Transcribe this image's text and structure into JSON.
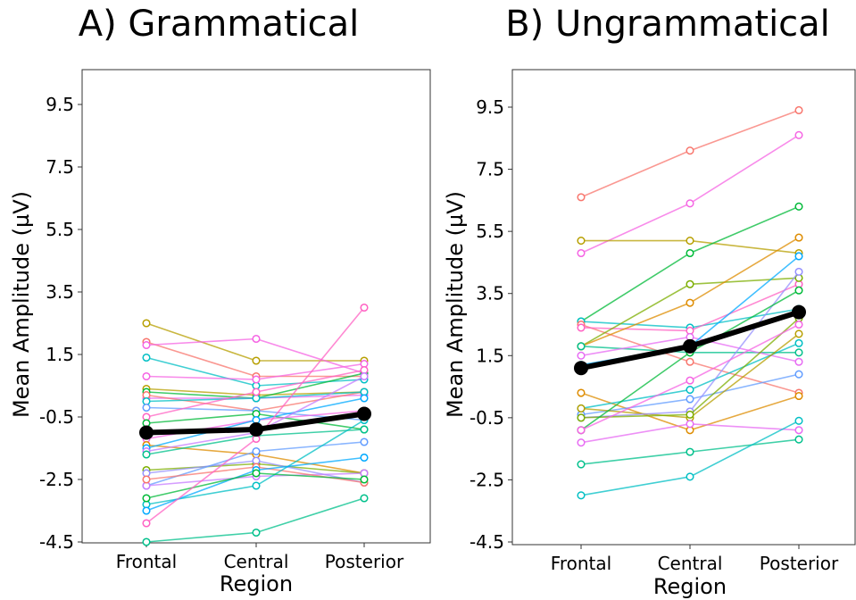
{
  "chart_data": [
    {
      "type": "line",
      "title": "A) Grammatical",
      "xlabel": "Region",
      "ylabel": "Mean Amplitude (µV)",
      "categories": [
        "Frontal",
        "Central",
        "Posterior"
      ],
      "yticks": [
        9.5,
        7.5,
        5.5,
        3.5,
        1.5,
        -0.5,
        -2.5,
        -4.5
      ],
      "ylim": [
        -5.2,
        11.0
      ],
      "grid": false,
      "mean": {
        "values": [
          -1.0,
          -0.9,
          -0.4
        ],
        "color": "#000000"
      },
      "series": [
        {
          "values": [
            2.5,
            1.3,
            1.3
          ],
          "color": "#B79F00"
        },
        {
          "values": [
            1.9,
            0.8,
            0.8
          ],
          "color": "#F8766D"
        },
        {
          "values": [
            1.8,
            2.0,
            0.9
          ],
          "color": "#F564E3"
        },
        {
          "values": [
            1.4,
            0.5,
            0.7
          ],
          "color": "#00BFC4"
        },
        {
          "values": [
            0.8,
            0.7,
            1.2
          ],
          "color": "#F564E3"
        },
        {
          "values": [
            0.4,
            0.2,
            0.3
          ],
          "color": "#B79F00"
        },
        {
          "values": [
            0.3,
            0.1,
            0.9
          ],
          "color": "#00BA38"
        },
        {
          "values": [
            0.1,
            0.1,
            0.2
          ],
          "color": "#E76BF3"
        },
        {
          "values": [
            0.2,
            -0.3,
            0.3
          ],
          "color": "#F8766D"
        },
        {
          "values": [
            0.0,
            0.1,
            0.3
          ],
          "color": "#00BFC4"
        },
        {
          "values": [
            -0.2,
            -0.3,
            -0.6
          ],
          "color": "#619CFF"
        },
        {
          "values": [
            -0.5,
            0.3,
            1.0
          ],
          "color": "#FF61C3"
        },
        {
          "values": [
            -0.7,
            -0.4,
            -0.9
          ],
          "color": "#00BA38"
        },
        {
          "values": [
            -1.2,
            -0.6,
            -0.3
          ],
          "color": "#F564E3"
        },
        {
          "values": [
            -1.4,
            -1.7,
            -2.3
          ],
          "color": "#DE8C00"
        },
        {
          "values": [
            -1.5,
            -0.6,
            0.1
          ],
          "color": "#00A9FF"
        },
        {
          "values": [
            -1.6,
            -1.0,
            0.8
          ],
          "color": "#C77CFF"
        },
        {
          "values": [
            -1.7,
            -1.1,
            -0.9
          ],
          "color": "#00C08B"
        },
        {
          "values": [
            -2.2,
            -2.0,
            -2.3
          ],
          "color": "#7CAE00"
        },
        {
          "values": [
            -2.3,
            -1.9,
            -2.6
          ],
          "color": "#9590FF"
        },
        {
          "values": [
            -2.7,
            -1.6,
            -1.3
          ],
          "color": "#619CFF"
        },
        {
          "values": [
            -2.7,
            -2.4,
            -2.3
          ],
          "color": "#C77CFF"
        },
        {
          "values": [
            -2.5,
            -2.1,
            -2.6
          ],
          "color": "#F8766D"
        },
        {
          "values": [
            -3.3,
            -2.7,
            -0.6
          ],
          "color": "#00BFC4"
        },
        {
          "values": [
            -3.5,
            -2.2,
            -1.8
          ],
          "color": "#00A9FF"
        },
        {
          "values": [
            -3.1,
            -2.3,
            -2.5
          ],
          "color": "#00BA38"
        },
        {
          "values": [
            -3.9,
            -1.2,
            3.0
          ],
          "color": "#FF61C3"
        },
        {
          "values": [
            -4.5,
            -4.2,
            -3.1
          ],
          "color": "#00C08B"
        }
      ]
    },
    {
      "type": "line",
      "title": "B) Ungrammatical",
      "xlabel": "Region",
      "ylabel": "Mean Amplitude (µV)",
      "categories": [
        "Frontal",
        "Central",
        "Posterior"
      ],
      "yticks": [
        9.5,
        7.5,
        5.5,
        3.5,
        1.5,
        -0.5,
        -2.5,
        -4.5
      ],
      "ylim": [
        -5.2,
        11.0
      ],
      "grid": false,
      "mean": {
        "values": [
          1.1,
          1.8,
          2.9
        ],
        "color": "#000000"
      },
      "series": [
        {
          "values": [
            6.6,
            8.1,
            9.4
          ],
          "color": "#F8766D"
        },
        {
          "values": [
            4.8,
            6.4,
            8.6
          ],
          "color": "#F564E3"
        },
        {
          "values": [
            5.2,
            5.2,
            4.8
          ],
          "color": "#B79F00"
        },
        {
          "values": [
            2.6,
            4.8,
            6.3
          ],
          "color": "#00BA38"
        },
        {
          "values": [
            2.6,
            2.4,
            3.0
          ],
          "color": "#00BFC4"
        },
        {
          "values": [
            2.5,
            1.3,
            0.3
          ],
          "color": "#F8766D"
        },
        {
          "values": [
            2.4,
            2.3,
            3.8
          ],
          "color": "#FF61C3"
        },
        {
          "values": [
            1.8,
            3.8,
            4.0
          ],
          "color": "#7CAE00"
        },
        {
          "values": [
            1.8,
            3.2,
            5.3
          ],
          "color": "#DE8C00"
        },
        {
          "values": [
            1.8,
            1.6,
            1.6
          ],
          "color": "#00C08B"
        },
        {
          "values": [
            1.5,
            2.1,
            1.3
          ],
          "color": "#E76BF3"
        },
        {
          "values": [
            1.2,
            1.8,
            4.7
          ],
          "color": "#00A9FF"
        },
        {
          "values": [
            0.3,
            -0.9,
            0.2
          ],
          "color": "#DE8C00"
        },
        {
          "values": [
            -0.2,
            0.4,
            1.9
          ],
          "color": "#00BFC4"
        },
        {
          "values": [
            -0.4,
            0.1,
            0.9
          ],
          "color": "#619CFF"
        },
        {
          "values": [
            -0.2,
            -0.5,
            2.2
          ],
          "color": "#B79F00"
        },
        {
          "values": [
            -0.5,
            -0.3,
            4.2
          ],
          "color": "#9590FF"
        },
        {
          "values": [
            -0.5,
            -0.4,
            2.7
          ],
          "color": "#7CAE00"
        },
        {
          "values": [
            -0.9,
            1.6,
            3.6
          ],
          "color": "#00BA38"
        },
        {
          "values": [
            -0.9,
            0.7,
            2.5
          ],
          "color": "#F564E3"
        },
        {
          "values": [
            -1.3,
            -0.7,
            -0.9
          ],
          "color": "#E76BF3"
        },
        {
          "values": [
            -2.0,
            -1.6,
            -1.2
          ],
          "color": "#00C08B"
        },
        {
          "values": [
            -3.0,
            -2.4,
            -0.6
          ],
          "color": "#00BFC4"
        }
      ]
    }
  ]
}
